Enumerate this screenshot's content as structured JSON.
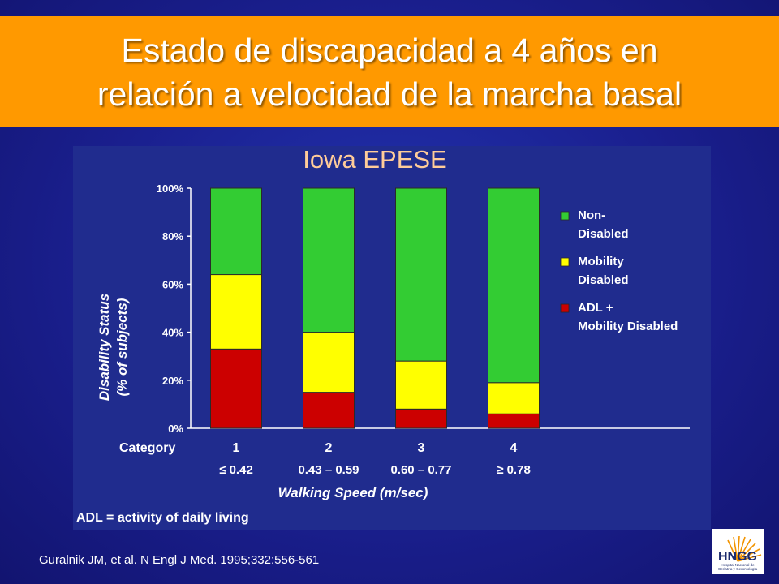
{
  "slide": {
    "title_line1": "Estado de discapacidad a 4 años en",
    "title_line2": "relación a velocidad de la marcha basal",
    "citation": "Guralnik JM, et al. N Engl J Med. 1995;332:556-561",
    "footnote": "ADL = activity of daily living",
    "logo": {
      "text": "HNGG",
      "subtitle1": "Hospital Nacional de",
      "subtitle2": "Geriatría y Gerontología"
    }
  },
  "colors": {
    "title_bar": "#ff9900",
    "panel": "#202c8e",
    "non_disabled": "#33cc33",
    "mobility_disabled": "#ffff00",
    "adl_mobility_disabled": "#cc0000",
    "chart_title": "#ffcc99"
  },
  "chart_data": {
    "type": "bar",
    "stacked": true,
    "title": "Iowa EPESE",
    "ylabel_line1": "Disability Status",
    "ylabel_line2": "(% of subjects)",
    "xlabel": "Walking Speed (m/sec)",
    "category_header": "Category",
    "categories": [
      "1",
      "2",
      "3",
      "4"
    ],
    "ranges": [
      "≤ 0.42",
      "0.43 – 0.59",
      "0.60 – 0.77",
      "≥ 0.78"
    ],
    "ylim": [
      0,
      100
    ],
    "yticks": [
      "0%",
      "20%",
      "40%",
      "60%",
      "80%",
      "100%"
    ],
    "series": [
      {
        "name": "ADL + Mobility Disabled",
        "legend_line1": "ADL +",
        "legend_line2": "Mobility Disabled",
        "color": "#cc0000",
        "values": [
          33,
          15,
          8,
          6
        ]
      },
      {
        "name": "Mobility Disabled",
        "legend_line1": "Mobility",
        "legend_line2": "Disabled",
        "color": "#ffff00",
        "values": [
          31,
          25,
          20,
          13
        ]
      },
      {
        "name": "Non-Disabled",
        "legend_line1": "Non-",
        "legend_line2": "Disabled",
        "color": "#33cc33",
        "values": [
          36,
          60,
          72,
          81
        ]
      }
    ],
    "legend_position": "right",
    "grid": false
  }
}
